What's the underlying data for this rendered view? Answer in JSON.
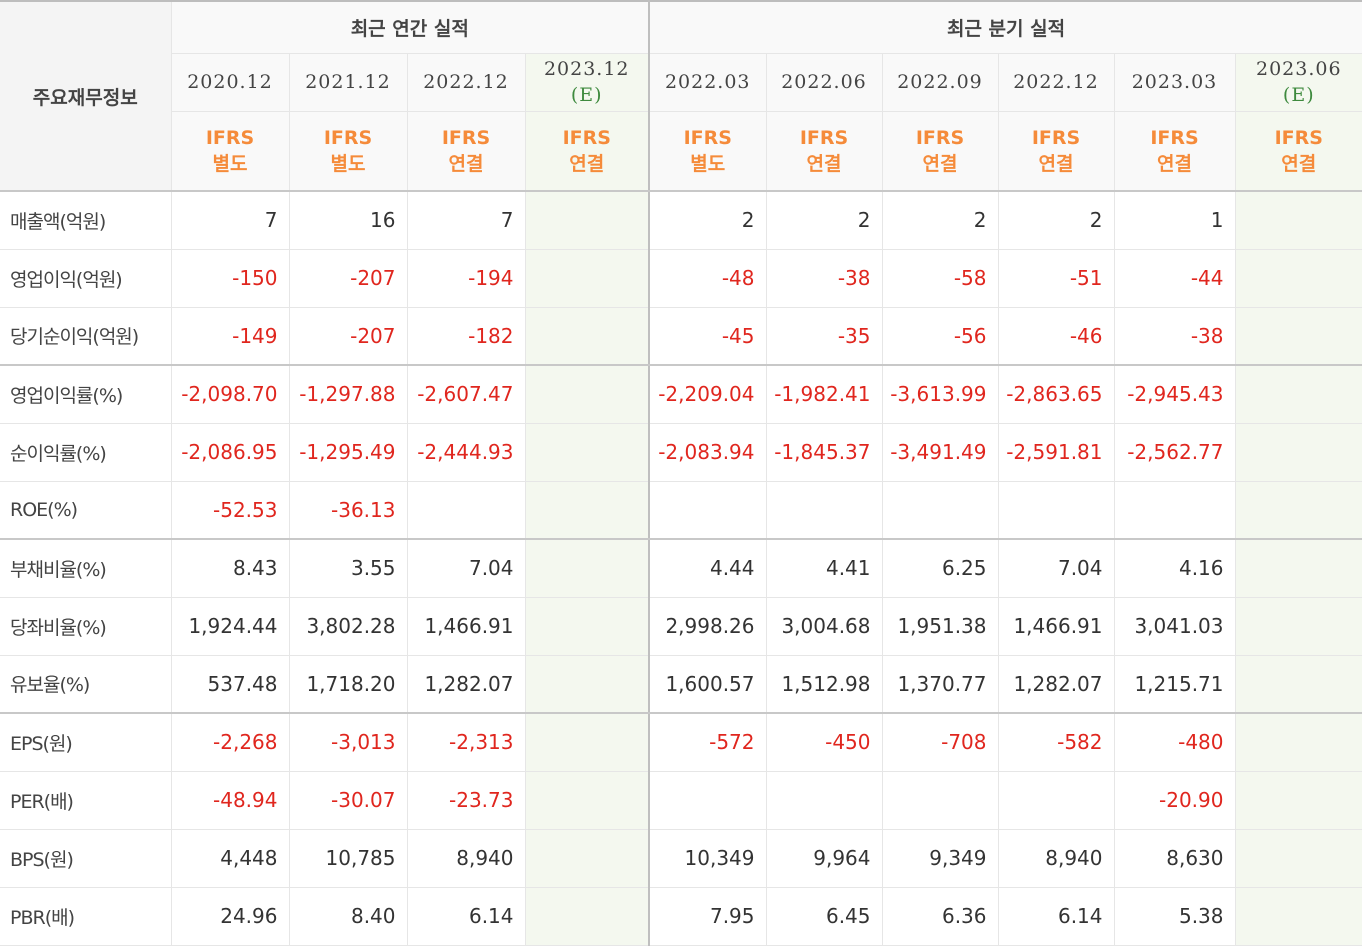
{
  "table": {
    "row_header_title": "주요재무정보",
    "groups": {
      "annual": "최근 연간 실적",
      "quarterly": "최근 분기 실적"
    },
    "annual_periods": [
      "2020.12",
      "2021.12",
      "2022.12",
      "2023.12"
    ],
    "annual_estimate_mark": "(E)",
    "quarterly_periods": [
      "2022.03",
      "2022.06",
      "2022.09",
      "2022.12",
      "2023.03",
      "2023.06"
    ],
    "quarterly_estimate_mark": "(E)",
    "annual_standards": [
      [
        "IFRS",
        "별도"
      ],
      [
        "IFRS",
        "별도"
      ],
      [
        "IFRS",
        "연결"
      ],
      [
        "IFRS",
        "연결"
      ]
    ],
    "quarterly_standards": [
      [
        "IFRS",
        "별도"
      ],
      [
        "IFRS",
        "연결"
      ],
      [
        "IFRS",
        "연결"
      ],
      [
        "IFRS",
        "연결"
      ],
      [
        "IFRS",
        "연결"
      ],
      [
        "IFRS",
        "연결"
      ]
    ],
    "rows": [
      {
        "label": "매출액(억원)",
        "annual": [
          "7",
          "16",
          "7",
          ""
        ],
        "quarterly": [
          "2",
          "2",
          "2",
          "2",
          "1",
          ""
        ]
      },
      {
        "label": "영업이익(억원)",
        "annual": [
          "-150",
          "-207",
          "-194",
          ""
        ],
        "quarterly": [
          "-48",
          "-38",
          "-58",
          "-51",
          "-44",
          ""
        ]
      },
      {
        "label": "당기순이익(억원)",
        "annual": [
          "-149",
          "-207",
          "-182",
          ""
        ],
        "quarterly": [
          "-45",
          "-35",
          "-56",
          "-46",
          "-38",
          ""
        ]
      },
      {
        "label": "영업이익률(%)",
        "annual": [
          "-2,098.70",
          "-1,297.88",
          "-2,607.47",
          ""
        ],
        "quarterly": [
          "-2,209.04",
          "-1,982.41",
          "-3,613.99",
          "-2,863.65",
          "-2,945.43",
          ""
        ]
      },
      {
        "label": "순이익률(%)",
        "annual": [
          "-2,086.95",
          "-1,295.49",
          "-2,444.93",
          ""
        ],
        "quarterly": [
          "-2,083.94",
          "-1,845.37",
          "-3,491.49",
          "-2,591.81",
          "-2,562.77",
          ""
        ]
      },
      {
        "label": "ROE(%)",
        "annual": [
          "-52.53",
          "-36.13",
          "",
          ""
        ],
        "quarterly": [
          "",
          "",
          "",
          "",
          "",
          ""
        ]
      },
      {
        "label": "부채비율(%)",
        "annual": [
          "8.43",
          "3.55",
          "7.04",
          ""
        ],
        "quarterly": [
          "4.44",
          "4.41",
          "6.25",
          "7.04",
          "4.16",
          ""
        ]
      },
      {
        "label": "당좌비율(%)",
        "annual": [
          "1,924.44",
          "3,802.28",
          "1,466.91",
          ""
        ],
        "quarterly": [
          "2,998.26",
          "3,004.68",
          "1,951.38",
          "1,466.91",
          "3,041.03",
          ""
        ]
      },
      {
        "label": "유보율(%)",
        "annual": [
          "537.48",
          "1,718.20",
          "1,282.07",
          ""
        ],
        "quarterly": [
          "1,600.57",
          "1,512.98",
          "1,370.77",
          "1,282.07",
          "1,215.71",
          ""
        ]
      },
      {
        "label": "EPS(원)",
        "annual": [
          "-2,268",
          "-3,013",
          "-2,313",
          ""
        ],
        "quarterly": [
          "-572",
          "-450",
          "-708",
          "-582",
          "-480",
          ""
        ]
      },
      {
        "label": "PER(배)",
        "annual": [
          "-48.94",
          "-30.07",
          "-23.73",
          ""
        ],
        "quarterly": [
          "",
          "",
          "",
          "",
          "-20.90",
          ""
        ]
      },
      {
        "label": "BPS(원)",
        "annual": [
          "4,448",
          "10,785",
          "8,940",
          ""
        ],
        "quarterly": [
          "10,349",
          "9,964",
          "9,349",
          "8,940",
          "8,630",
          ""
        ]
      },
      {
        "label": "PBR(배)",
        "annual": [
          "24.96",
          "8.40",
          "6.14",
          ""
        ],
        "quarterly": [
          "7.95",
          "6.45",
          "6.36",
          "6.14",
          "5.38",
          ""
        ]
      }
    ]
  }
}
